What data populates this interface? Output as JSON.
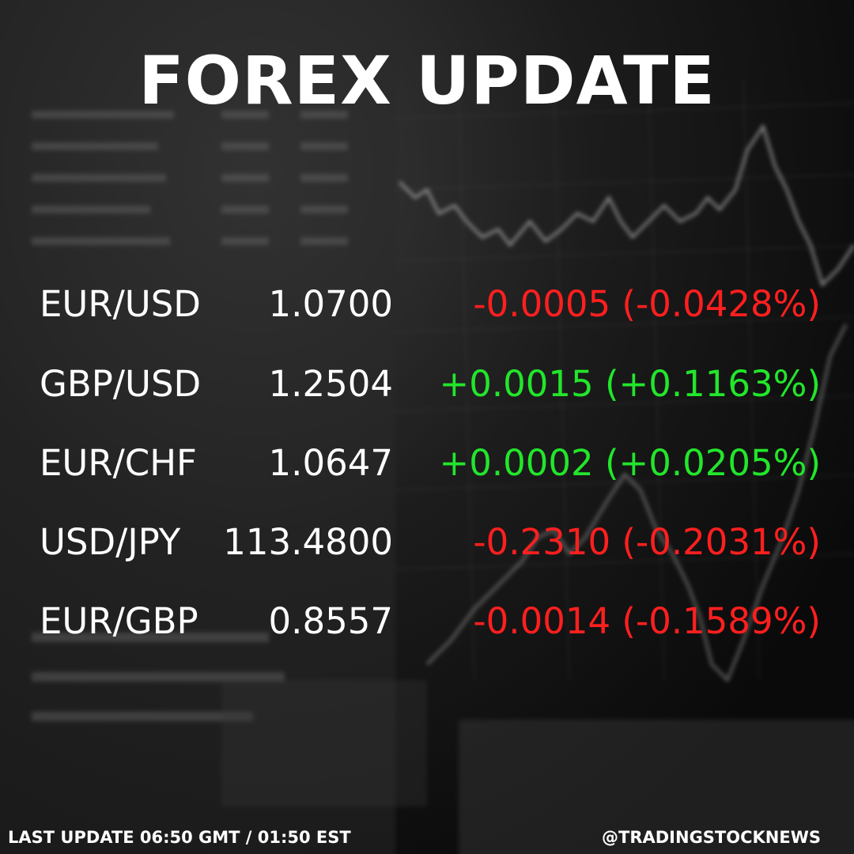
{
  "title": "FOREX UPDATE",
  "colors": {
    "negative": "#ff1f1f",
    "positive": "#22e62b",
    "text": "#ffffff"
  },
  "quotes": [
    {
      "pair": "EUR/USD",
      "price": "1.0700",
      "change": "-0.0005 (-0.0428%)",
      "direction": "negative"
    },
    {
      "pair": "GBP/USD",
      "price": "1.2504",
      "change": "+0.0015 (+0.1163%)",
      "direction": "positive"
    },
    {
      "pair": "EUR/CHF",
      "price": "1.0647",
      "change": "+0.0002 (+0.0205%)",
      "direction": "positive"
    },
    {
      "pair": "USD/JPY",
      "price": "113.4800",
      "change": "-0.2310 (-0.2031%)",
      "direction": "negative"
    },
    {
      "pair": "EUR/GBP",
      "price": "0.8557",
      "change": "-0.0014 (-0.1589%)",
      "direction": "negative"
    }
  ],
  "footer": {
    "last_update": "LAST UPDATE 06:50 GMT / 01:50 EST",
    "handle": "@TRADINGSTOCKNEWS"
  }
}
